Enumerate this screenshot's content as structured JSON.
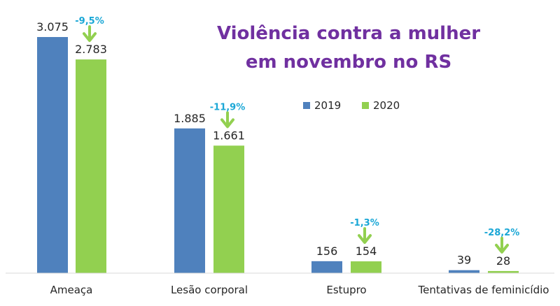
{
  "chart_data": {
    "type": "bar",
    "title_lines": [
      "Violência contra a mulher",
      "em novembro no RS"
    ],
    "categories": [
      "Ameaça",
      "Lesão corporal",
      "Estupro",
      "Tentativas de feminicídio"
    ],
    "series": [
      {
        "name": "2019",
        "values": [
          3075,
          1885,
          156,
          39
        ],
        "labels": [
          "3.075",
          "1.885",
          "156",
          "39"
        ],
        "color": "#4f81bd"
      },
      {
        "name": "2020",
        "values": [
          2783,
          1661,
          154,
          28
        ],
        "labels": [
          "2.783",
          "1.661",
          "154",
          "28"
        ],
        "color": "#92d050"
      }
    ],
    "changes": [
      "-9,5%",
      "-11,9%",
      "-1,3%",
      "-28,2%"
    ],
    "ylim": [
      0,
      3075
    ],
    "legend": "center-right",
    "grid": false,
    "colors": {
      "title": "#7030a0",
      "change_text": "#1aa7d6",
      "arrow": "#92d050",
      "axis": "#d9d9d9"
    }
  }
}
